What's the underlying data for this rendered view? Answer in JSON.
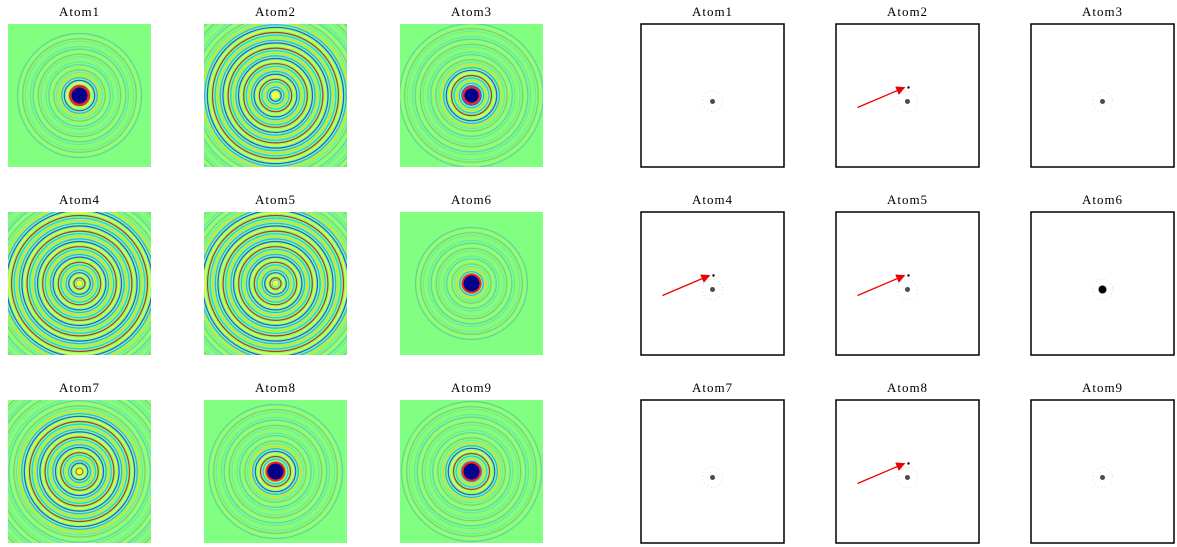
{
  "left_panels": [
    {
      "title": "Atom1"
    },
    {
      "title": "Atom2"
    },
    {
      "title": "Atom3"
    },
    {
      "title": "Atom4"
    },
    {
      "title": "Atom5"
    },
    {
      "title": "Atom6"
    },
    {
      "title": "Atom7"
    },
    {
      "title": "Atom8"
    },
    {
      "title": "Atom9"
    }
  ],
  "right_panels": [
    {
      "title": "Atom1"
    },
    {
      "title": "Atom2"
    },
    {
      "title": "Atom3"
    },
    {
      "title": "Atom4"
    },
    {
      "title": "Atom5"
    },
    {
      "title": "Atom6"
    },
    {
      "title": "Atom7"
    },
    {
      "title": "Atom8"
    },
    {
      "title": "Atom9"
    }
  ]
}
